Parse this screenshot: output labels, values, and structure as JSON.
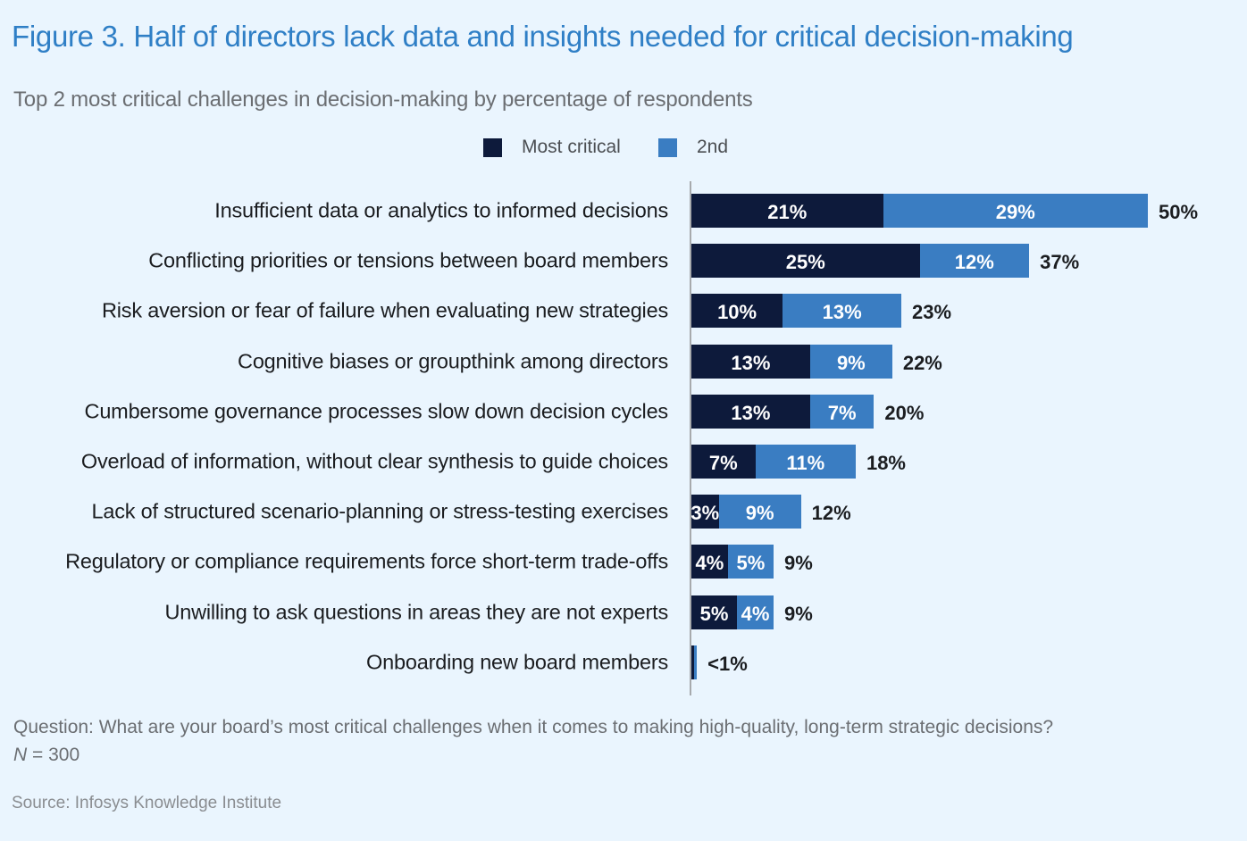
{
  "title": "Figure 3. Half of directors lack data and insights needed for critical decision-making",
  "subtitle": "Top 2 most critical challenges in decision-making by percentage of respondents",
  "question": "Question: What are your board’s most critical challenges when it comes to making high-quality, long-term strategic decisions?",
  "n_label": "N",
  "n_value": "= 300",
  "source": "Source: Infosys Knowledge Institute",
  "chart_data": {
    "type": "bar",
    "orientation": "horizontal",
    "stacked": true,
    "legend_position": "top",
    "grid": false,
    "categories": [
      "Insufficient data or analytics to informed decisions",
      "Conflicting priorities or tensions between board members",
      "Risk aversion or fear of failure when evaluating new strategies",
      "Cognitive biases or groupthink among directors",
      "Cumbersome governance processes slow down decision cycles",
      "Overload of information, without clear synthesis to guide choices",
      "Lack of structured scenario-planning or stress-testing exercises",
      "Regulatory or compliance requirements force short-term trade-offs",
      "Unwilling to ask questions in areas they are not experts",
      "Onboarding new board members"
    ],
    "series": [
      {
        "name": "Most critical",
        "color": "#0d1a3b",
        "values": [
          21,
          25,
          10,
          13,
          13,
          7,
          3,
          4,
          5,
          0.3
        ],
        "labels": [
          "21%",
          "25%",
          "10%",
          "13%",
          "13%",
          "7%",
          "3%",
          "4%",
          "5%",
          ""
        ]
      },
      {
        "name": "2nd",
        "color": "#3a7dc2",
        "values": [
          29,
          12,
          13,
          9,
          7,
          11,
          9,
          5,
          4,
          0.3
        ],
        "labels": [
          "29%",
          "12%",
          "13%",
          "9%",
          "7%",
          "11%",
          "9%",
          "5%",
          "4%",
          ""
        ]
      }
    ],
    "totals": [
      "50%",
      "37%",
      "23%",
      "22%",
      "20%",
      "18%",
      "12%",
      "9%",
      "9%",
      "<1%"
    ],
    "xlim": [
      0,
      50
    ]
  }
}
